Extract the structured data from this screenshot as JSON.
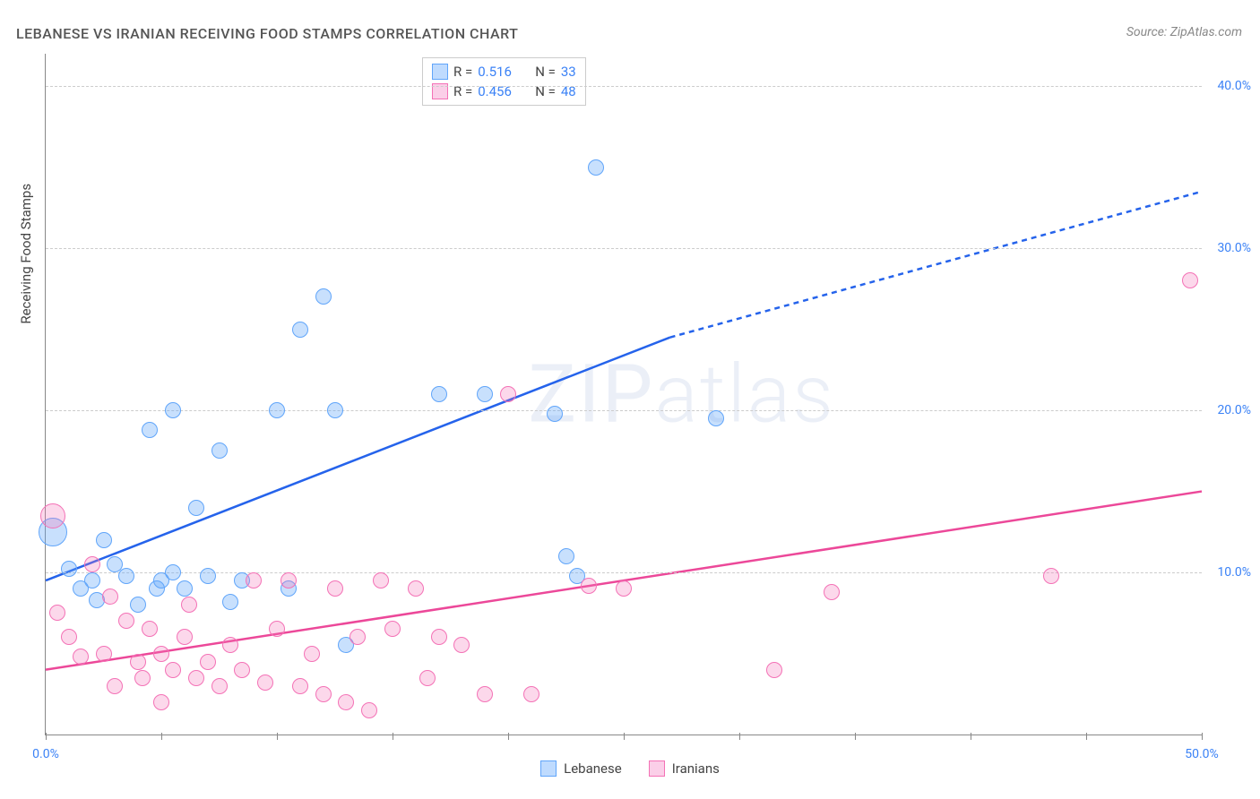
{
  "title": "LEBANESE VS IRANIAN RECEIVING FOOD STAMPS CORRELATION CHART",
  "source_label": "Source: ",
  "source_name": "ZipAtlas.com",
  "ylabel": "Receiving Food Stamps",
  "watermark_zip": "ZIP",
  "watermark_atlas": "atlas",
  "chart": {
    "type": "scatter",
    "xlim": [
      0,
      50
    ],
    "ylim": [
      0,
      42
    ],
    "xtick_positions": [
      0,
      5,
      10,
      15,
      20,
      25,
      30,
      35,
      40,
      45,
      50
    ],
    "xtick_labels": {
      "0": "0.0%",
      "50": "50.0%"
    },
    "ytick_positions": [
      10,
      20,
      30,
      40
    ],
    "ytick_labels": {
      "10": "10.0%",
      "20": "20.0%",
      "30": "30.0%",
      "40": "40.0%"
    },
    "grid_color": "#cccccc",
    "axis_color": "#888888",
    "background_color": "#ffffff",
    "tick_label_color": "#3b82f6",
    "point_radius": 9,
    "point_border_width": 1.5
  },
  "series": [
    {
      "name": "Lebanese",
      "fill_color": "rgba(96,165,250,0.35)",
      "border_color": "#60a5fa",
      "line_color": "#2563eb",
      "legend_swatch_fill": "#bfdbfe",
      "legend_swatch_border": "#60a5fa",
      "r_label": "R  =",
      "r_value": "0.516",
      "n_label": "N  =",
      "n_value": "33",
      "regression": {
        "x1": 0,
        "y1": 9.5,
        "x_solid_end": 27,
        "y_solid_end": 24.5,
        "x2": 50,
        "y2": 33.5,
        "width": 2.5,
        "dash": "6,5"
      },
      "points": [
        {
          "x": 0.3,
          "y": 12.5,
          "r": 16
        },
        {
          "x": 2.5,
          "y": 12.0
        },
        {
          "x": 1.0,
          "y": 10.2
        },
        {
          "x": 2.0,
          "y": 9.5
        },
        {
          "x": 3.5,
          "y": 9.8
        },
        {
          "x": 5.0,
          "y": 9.5
        },
        {
          "x": 4.0,
          "y": 8.0
        },
        {
          "x": 6.0,
          "y": 9.0
        },
        {
          "x": 7.0,
          "y": 9.8
        },
        {
          "x": 8.0,
          "y": 8.2
        },
        {
          "x": 6.5,
          "y": 14.0
        },
        {
          "x": 4.5,
          "y": 18.8
        },
        {
          "x": 5.5,
          "y": 20.0
        },
        {
          "x": 7.5,
          "y": 17.5
        },
        {
          "x": 10.0,
          "y": 20.0
        },
        {
          "x": 12.5,
          "y": 20.0
        },
        {
          "x": 11.0,
          "y": 25.0
        },
        {
          "x": 12.0,
          "y": 27.0
        },
        {
          "x": 10.5,
          "y": 9.0
        },
        {
          "x": 13.0,
          "y": 5.5
        },
        {
          "x": 17.0,
          "y": 21.0
        },
        {
          "x": 19.0,
          "y": 21.0
        },
        {
          "x": 22.0,
          "y": 19.8
        },
        {
          "x": 22.5,
          "y": 11.0
        },
        {
          "x": 23.0,
          "y": 9.8
        },
        {
          "x": 23.8,
          "y": 35.0
        },
        {
          "x": 29.0,
          "y": 19.5
        },
        {
          "x": 3.0,
          "y": 10.5
        },
        {
          "x": 5.5,
          "y": 10.0
        },
        {
          "x": 1.5,
          "y": 9.0
        },
        {
          "x": 4.8,
          "y": 9.0
        },
        {
          "x": 8.5,
          "y": 9.5
        },
        {
          "x": 2.2,
          "y": 8.3
        }
      ]
    },
    {
      "name": "Iranians",
      "fill_color": "rgba(244,114,182,0.28)",
      "border_color": "#f472b6",
      "line_color": "#ec4899",
      "legend_swatch_fill": "#fbcfe8",
      "legend_swatch_border": "#f472b6",
      "r_label": "R  =",
      "r_value": "0.456",
      "n_label": "N  =",
      "n_value": "48",
      "regression": {
        "x1": 0,
        "y1": 4.0,
        "x_solid_end": 50,
        "y_solid_end": 15.0,
        "x2": 50,
        "y2": 15.0,
        "width": 2.5
      },
      "points": [
        {
          "x": 0.3,
          "y": 13.5,
          "r": 14
        },
        {
          "x": 0.5,
          "y": 7.5
        },
        {
          "x": 1.0,
          "y": 6.0
        },
        {
          "x": 1.5,
          "y": 4.8
        },
        {
          "x": 2.0,
          "y": 10.5
        },
        {
          "x": 2.5,
          "y": 5.0
        },
        {
          "x": 3.0,
          "y": 3.0
        },
        {
          "x": 3.5,
          "y": 7.0
        },
        {
          "x": 4.0,
          "y": 4.5
        },
        {
          "x": 4.5,
          "y": 6.5
        },
        {
          "x": 5.0,
          "y": 5.0
        },
        {
          "x": 5.0,
          "y": 2.0
        },
        {
          "x": 5.5,
          "y": 4.0
        },
        {
          "x": 6.0,
          "y": 6.0
        },
        {
          "x": 6.5,
          "y": 3.5
        },
        {
          "x": 7.0,
          "y": 4.5
        },
        {
          "x": 7.5,
          "y": 3.0
        },
        {
          "x": 8.0,
          "y": 5.5
        },
        {
          "x": 8.5,
          "y": 4.0
        },
        {
          "x": 9.0,
          "y": 9.5
        },
        {
          "x": 9.5,
          "y": 3.2
        },
        {
          "x": 10.0,
          "y": 6.5
        },
        {
          "x": 10.5,
          "y": 9.5
        },
        {
          "x": 11.0,
          "y": 3.0
        },
        {
          "x": 11.5,
          "y": 5.0
        },
        {
          "x": 12.0,
          "y": 2.5
        },
        {
          "x": 12.5,
          "y": 9.0
        },
        {
          "x": 13.0,
          "y": 2.0
        },
        {
          "x": 13.5,
          "y": 6.0
        },
        {
          "x": 14.0,
          "y": 1.5
        },
        {
          "x": 14.5,
          "y": 9.5
        },
        {
          "x": 15.0,
          "y": 6.5
        },
        {
          "x": 16.0,
          "y": 9.0
        },
        {
          "x": 16.5,
          "y": 3.5
        },
        {
          "x": 17.0,
          "y": 6.0
        },
        {
          "x": 18.0,
          "y": 5.5
        },
        {
          "x": 19.0,
          "y": 2.5
        },
        {
          "x": 20.0,
          "y": 21.0
        },
        {
          "x": 21.0,
          "y": 2.5
        },
        {
          "x": 23.5,
          "y": 9.2
        },
        {
          "x": 25.0,
          "y": 9.0
        },
        {
          "x": 31.5,
          "y": 4.0
        },
        {
          "x": 34.0,
          "y": 8.8
        },
        {
          "x": 43.5,
          "y": 9.8
        },
        {
          "x": 49.5,
          "y": 28.0
        },
        {
          "x": 2.8,
          "y": 8.5
        },
        {
          "x": 6.2,
          "y": 8.0
        },
        {
          "x": 4.2,
          "y": 3.5
        }
      ]
    }
  ],
  "bottom_legend": [
    {
      "label": "Lebanese",
      "fill": "#bfdbfe",
      "border": "#60a5fa"
    },
    {
      "label": "Iranians",
      "fill": "#fbcfe8",
      "border": "#f472b6"
    }
  ]
}
